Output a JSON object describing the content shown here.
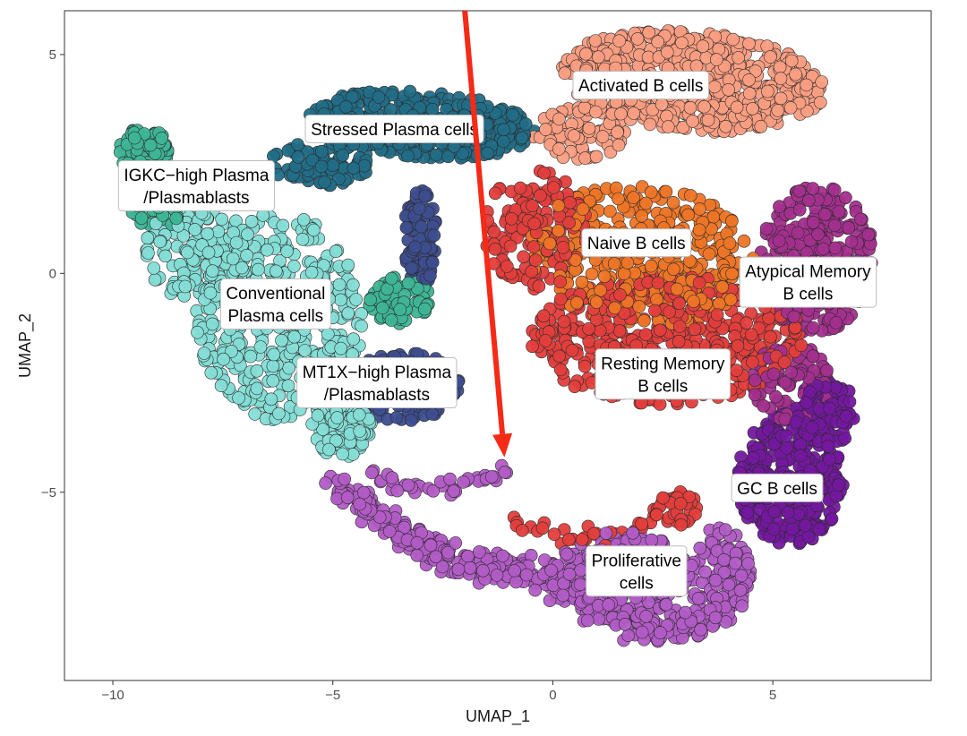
{
  "chart_data": {
    "type": "scatter",
    "title": "",
    "xlabel": "UMAP_1",
    "ylabel": "UMAP_2",
    "xlim": [
      -11.1,
      8.6
    ],
    "ylim": [
      -9.3,
      6.0
    ],
    "xticks": [
      -10,
      -5,
      0,
      5
    ],
    "yticks": [
      5,
      0,
      -5
    ],
    "xtick_labels": [
      "−10",
      "−5",
      "0",
      "5"
    ],
    "ytick_labels": [
      "5",
      "0",
      "−5"
    ],
    "grid": false,
    "legend": "none",
    "clusters": [
      {
        "label": "Activated B cells",
        "label_lines": [
          "Activated B cells"
        ],
        "color": "#fa9e82",
        "label_pos": [
          2.0,
          4.3
        ]
      },
      {
        "label": "Stressed Plasma cells",
        "label_lines": [
          "Stressed Plasma cells"
        ],
        "color": "#226d86",
        "label_pos": [
          -3.6,
          3.3
        ]
      },
      {
        "label": "IGKC-high Plasma /Plasmablasts",
        "label_lines": [
          "IGKC−high Plasma",
          "/Plasmablasts"
        ],
        "color": "#3eb596",
        "label_pos": [
          -8.1,
          2.0
        ]
      },
      {
        "label": "Naive B cells",
        "label_lines": [
          "Naive B cells"
        ],
        "color": "#ee7526",
        "label_pos": [
          1.9,
          0.7
        ]
      },
      {
        "label": "Atypical Memory B cells",
        "label_lines": [
          "Atypical Memory",
          "B cells"
        ],
        "color": "#a32f8d",
        "label_pos": [
          5.8,
          -0.2
        ]
      },
      {
        "label": "Conventional Plasma cells",
        "label_lines": [
          "Conventional",
          "Plasma cells"
        ],
        "color": "#84ddd6",
        "label_pos": [
          -6.3,
          -0.7
        ]
      },
      {
        "label": "Resting Memory B cells",
        "label_lines": [
          "Resting Memory",
          "B cells"
        ],
        "color": "#e23e3c",
        "label_pos": [
          2.5,
          -2.3
        ]
      },
      {
        "label": "MT1X-high Plasma /Plasmablasts",
        "label_lines": [
          "MT1X−high Plasma",
          "/Plasmablasts"
        ],
        "color": "#3d4d8e",
        "label_pos": [
          -4.0,
          -2.5
        ]
      },
      {
        "label": "GC B cells",
        "label_lines": [
          "GC B cells"
        ],
        "color": "#73189e",
        "label_pos": [
          5.1,
          -4.9
        ]
      },
      {
        "label": "Proliferative cells",
        "label_lines": [
          "Proliferative",
          "cells"
        ],
        "color": "#b25cc6",
        "label_pos": [
          1.9,
          -6.8
        ]
      }
    ],
    "annotation": {
      "type": "arrow",
      "color": "#f52a17",
      "from": [
        -2.0,
        6.0
      ],
      "to": [
        -1.1,
        -4.2
      ]
    }
  }
}
